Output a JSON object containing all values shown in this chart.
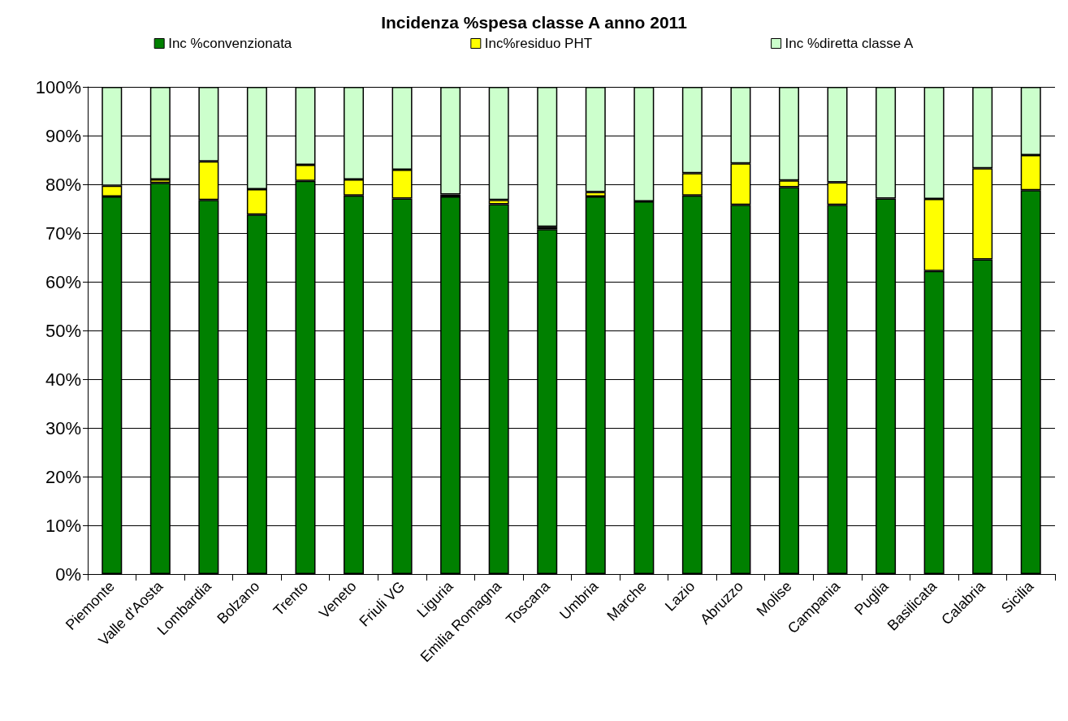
{
  "chart_data": {
    "type": "bar",
    "title": "Incidenza %spesa classe A anno 2011",
    "stacked": true,
    "legend": "top",
    "grid": "y",
    "categories": [
      "Piemonte",
      "Valle d'Aosta",
      "Lombardia",
      "Bolzano",
      "Trento",
      "Veneto",
      "Friuli VG",
      "Liguria",
      "Emilia Romagna",
      "Toscana",
      "Umbria",
      "Marche",
      "Lazio",
      "Abruzzo",
      "Molise",
      "Campania",
      "Puglia",
      "Basilicata",
      "Calabria",
      "Sicilia"
    ],
    "ylim": [
      0,
      100
    ],
    "yticks": [
      {
        "value": 0,
        "label": "0%"
      },
      {
        "value": 10,
        "label": "10%"
      },
      {
        "value": 20,
        "label": "20%"
      },
      {
        "value": 30,
        "label": "30%"
      },
      {
        "value": 40,
        "label": "40%"
      },
      {
        "value": 50,
        "label": "50%"
      },
      {
        "value": 60,
        "label": "60%"
      },
      {
        "value": 70,
        "label": "70%"
      },
      {
        "value": 80,
        "label": "80%"
      },
      {
        "value": 90,
        "label": "90%"
      },
      {
        "value": 100,
        "label": "100%"
      }
    ],
    "series": [
      {
        "name": "Inc %convenzionata",
        "color": "#008000",
        "values": [
          77.5,
          80.3,
          76.8,
          73.8,
          80.7,
          77.7,
          77.1,
          77.5,
          75.9,
          70.8,
          77.5,
          76.5,
          77.7,
          75.8,
          79.4,
          75.8,
          77.1,
          62.2,
          64.6,
          78.8
        ]
      },
      {
        "name": "Inc%residuo PHT",
        "color": "#ffff00",
        "values": [
          2.2,
          0.7,
          7.9,
          5.2,
          3.3,
          3.3,
          5.9,
          0.4,
          0.9,
          0.5,
          0.9,
          null,
          4.6,
          8.5,
          1.4,
          4.6,
          null,
          14.8,
          18.7,
          7.2
        ]
      },
      {
        "name": "Inc %diretta classe A",
        "color": "#ccffcc",
        "values": [
          20.3,
          19.0,
          15.3,
          21.0,
          16.0,
          19.0,
          17.0,
          22.1,
          23.2,
          28.7,
          21.6,
          23.5,
          17.7,
          15.7,
          19.2,
          19.6,
          22.9,
          23.0,
          16.7,
          14.0
        ]
      }
    ]
  }
}
